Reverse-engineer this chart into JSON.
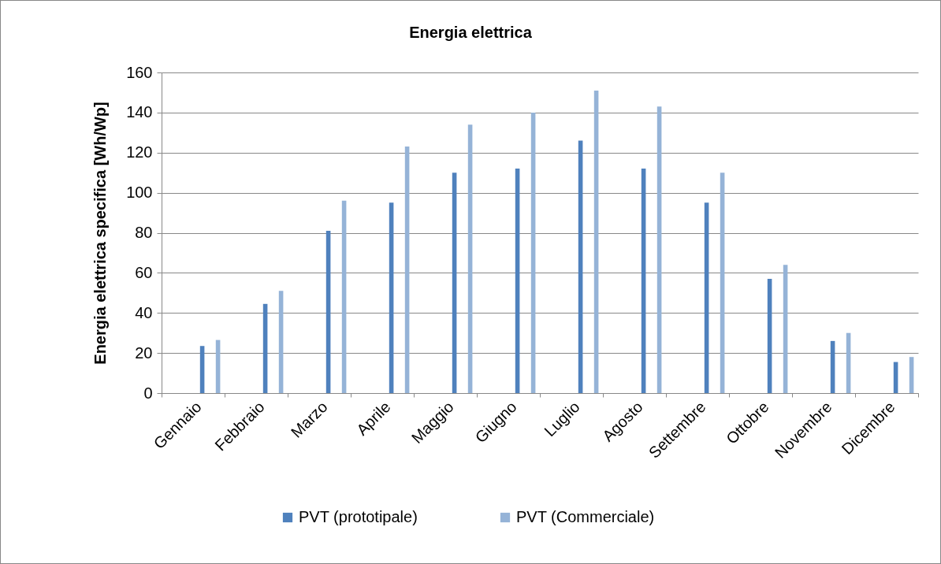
{
  "chart_data": {
    "type": "bar",
    "title": "Energia elettrica",
    "ylabel": "Energia elettrica specifica [Wh/Wp]",
    "categories": [
      "Gennaio",
      "Febbraio",
      "Marzo",
      "Aprile",
      "Maggio",
      "Giugno",
      "Luglio",
      "Agosto",
      "Settembre",
      "Ottobre",
      "Novembre",
      "Dicembre"
    ],
    "series": [
      {
        "name": "PVT (prototipale)",
        "color": "#4f81bd",
        "values": [
          23.5,
          44.5,
          81,
          95,
          110,
          112,
          126,
          112,
          95,
          57,
          26,
          15.5
        ]
      },
      {
        "name": "PVT (Commerciale)",
        "color": "#95b3d7",
        "values": [
          26.5,
          51,
          96,
          123,
          134,
          140,
          151,
          143,
          110,
          64,
          30,
          18
        ]
      }
    ],
    "ylim": [
      0,
      160
    ],
    "yticks": [
      0,
      20,
      40,
      60,
      80,
      100,
      120,
      140,
      160
    ],
    "grid": "y",
    "legend": "bottom"
  }
}
